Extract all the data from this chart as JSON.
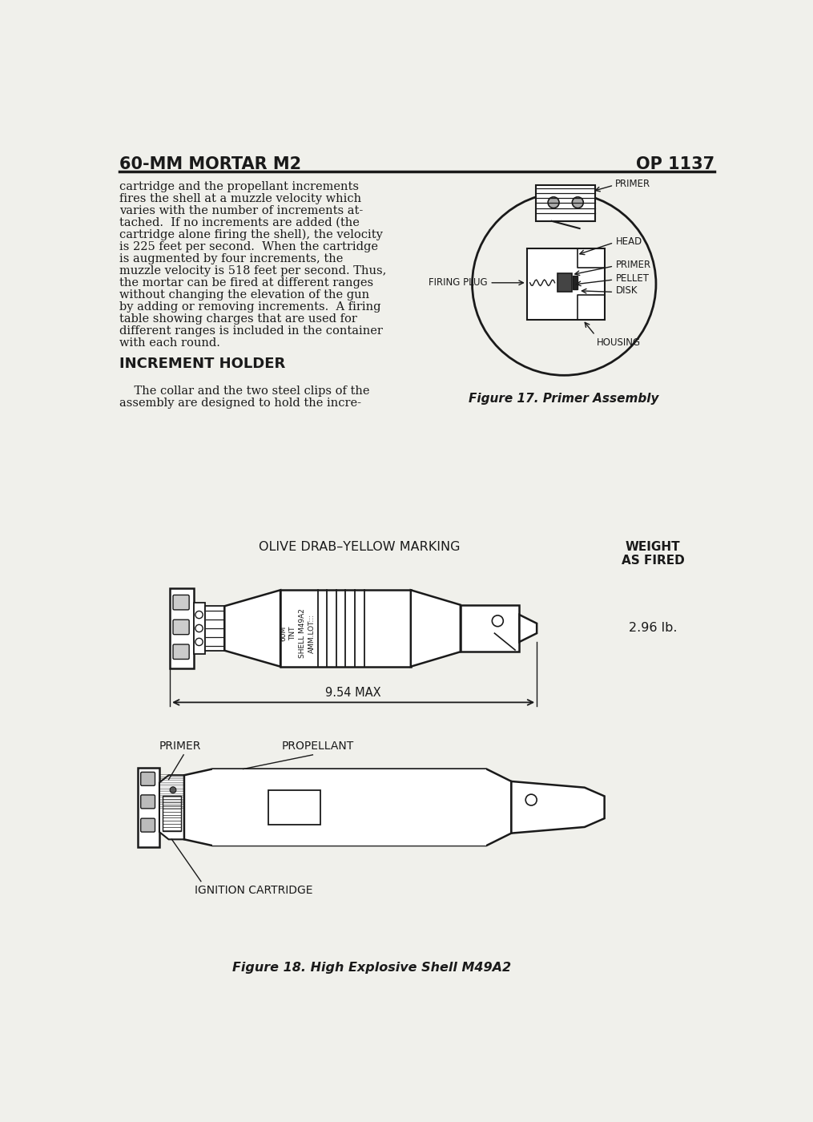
{
  "page_title_left": "60-MM MORTAR M2",
  "page_title_right": "OP 1137",
  "background_color": "#f0f0eb",
  "text_color": "#1a1a1a",
  "body_text": [
    "cartridge and the propellant increments",
    "fires the shell at a muzzle velocity which",
    "varies with the number of increments at-",
    "tached.  If no increments are added (the",
    "cartridge alone firing the shell), the velocity",
    "is 225 feet per second.  When the cartridge",
    "is augmented by four increments, the",
    "muzzle velocity is 518 feet per second. Thus,",
    "the mortar can be fired at different ranges",
    "without changing the elevation of the gun",
    "by adding or removing increments.  A firing",
    "table showing charges that are used for",
    "different ranges is included in the container",
    "with each round."
  ],
  "section_title": "INCREMENT HOLDER",
  "section_text": [
    "    The collar and the two steel clips of the",
    "assembly are designed to hold the incre-"
  ],
  "fig17_caption": "Figure 17. Primer Assembly",
  "fig17_labels": [
    "PRIMER",
    "HEAD",
    "PRIMER",
    "PELLET",
    "DISK",
    "HOUSING",
    "FIRING PLUG"
  ],
  "mortar_label_top": "OLIVE DRAB–YELLOW MARKING",
  "mortar_label_weight_title": "WEIGHT\nAS FIRED",
  "mortar_label_weight": "2.96 lb.",
  "mortar_dimension": "9.54 MAX",
  "fig18_caption": "Figure 18. High Explosive Shell M49A2",
  "fig18_labels": [
    "PRIMER",
    "PROPELLANT",
    "IGNITION CARTRIDGE"
  ]
}
